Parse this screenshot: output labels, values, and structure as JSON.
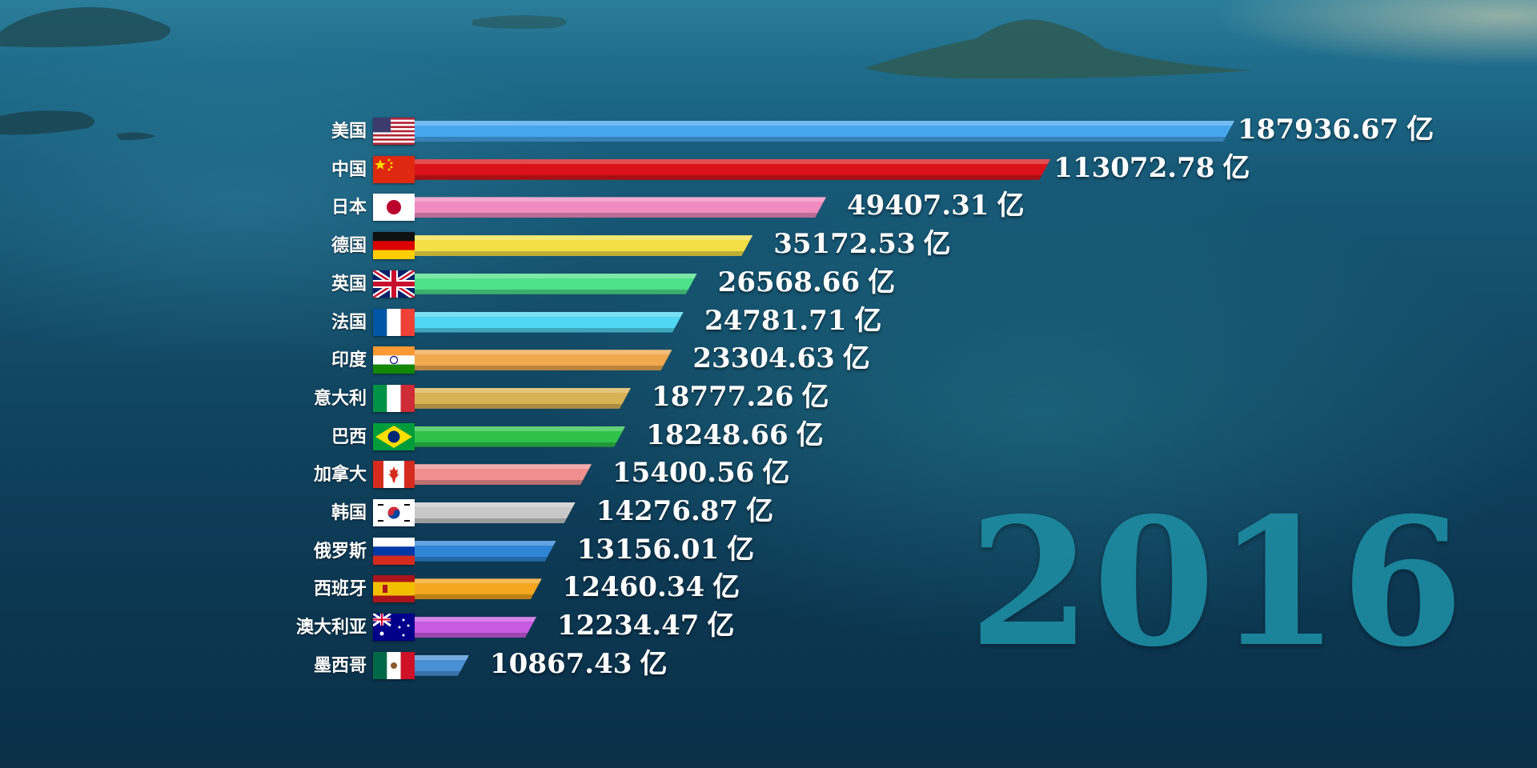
{
  "chart_data": {
    "type": "bar",
    "orientation": "horizontal",
    "year": "2016",
    "unit": "亿",
    "categories": [
      "美国",
      "中国",
      "日本",
      "德国",
      "英国",
      "法国",
      "印度",
      "意大利",
      "巴西",
      "加拿大",
      "韩国",
      "俄罗斯",
      "西班牙",
      "澳大利亚",
      "墨西哥"
    ],
    "values": [
      187936.67,
      113072.78,
      49407.31,
      35172.53,
      26568.66,
      24781.71,
      23304.63,
      18777.26,
      18248.66,
      15400.56,
      14276.87,
      13156.01,
      12460.34,
      12234.47,
      10867.43
    ],
    "value_labels": [
      "187936.67",
      "113072.78",
      "49407.31",
      "35172.53",
      "26568.66",
      "24781.71",
      "23304.63",
      "18777.26",
      "18248.66",
      "15400.56",
      "14276.87",
      "13156.01",
      "12460.34",
      "12234.47",
      "10867.43"
    ],
    "bar_colors": [
      "#47a6ee",
      "#d91219",
      "#f08cc0",
      "#f2e046",
      "#4fe08a",
      "#4fd6f2",
      "#f0a94e",
      "#d9b253",
      "#2ec24a",
      "#f08f8f",
      "#c8c8c8",
      "#2f86d6",
      "#f5a61c",
      "#c85ae0",
      "#4a90d6"
    ],
    "flags": [
      "usa-flag",
      "china-flag",
      "japan-flag",
      "germany-flag",
      "uk-flag",
      "france-flag",
      "india-flag",
      "italy-flag",
      "brazil-flag",
      "canada-flag",
      "korea-flag",
      "russia-flag",
      "spain-flag",
      "australia-flag",
      "mexico-flag"
    ],
    "legend": "none",
    "grid": false
  }
}
